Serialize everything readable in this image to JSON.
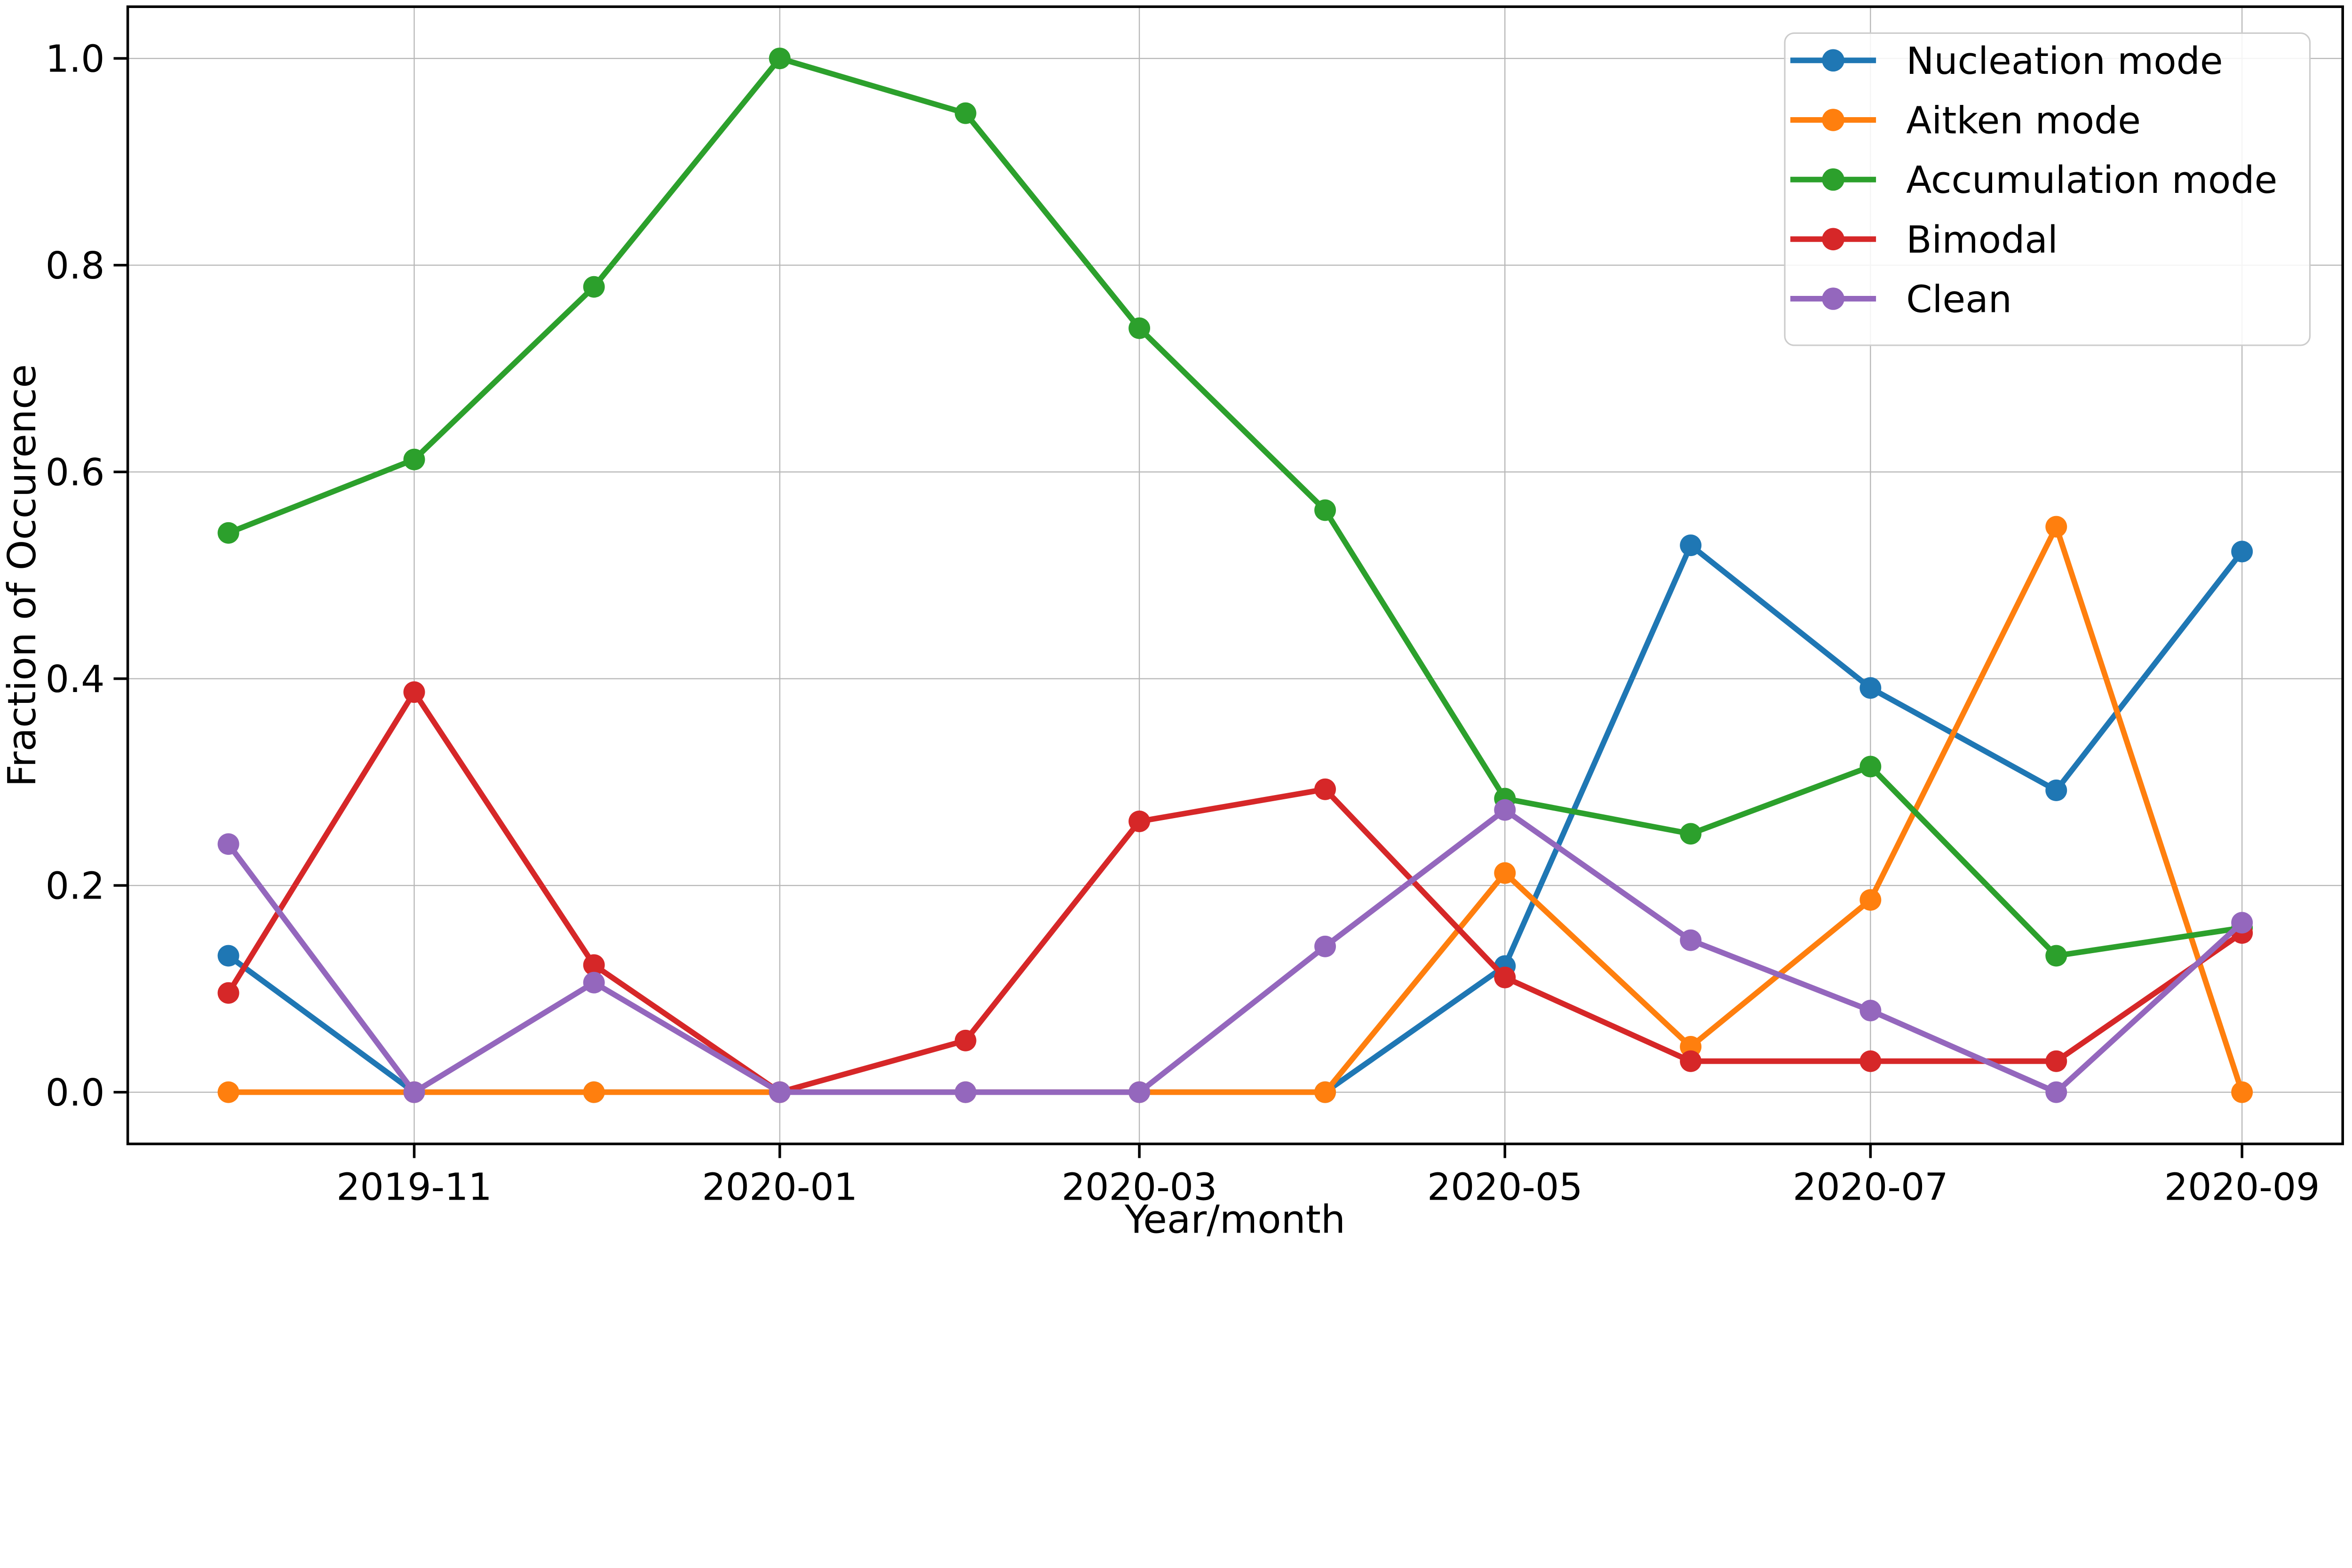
{
  "figure": {
    "background_color": "#ffffff",
    "grid_color": "#b8b8b8",
    "spine_color": "#000000"
  },
  "chart_data": {
    "type": "line",
    "title": "",
    "xlabel": "Year/month",
    "ylabel": "Fraction of Occurence",
    "grid": true,
    "legend_position": "upper right",
    "ylim": [
      -0.05,
      1.05
    ],
    "y_ticks": [
      0.0,
      0.2,
      0.4,
      0.6,
      0.8,
      1.0
    ],
    "y_tick_labels": [
      "0.0",
      "0.2",
      "0.4",
      "0.6",
      "0.8",
      "1.0"
    ],
    "categories": [
      "2019-10",
      "2019-11",
      "2019-12",
      "2020-01",
      "2020-02",
      "2020-03",
      "2020-04",
      "2020-05",
      "2020-06",
      "2020-07",
      "2020-08",
      "2020-09"
    ],
    "x_day_offsets": [
      0,
      31,
      61,
      92,
      123,
      152,
      183,
      213,
      244,
      274,
      305,
      336
    ],
    "x_tick_day_offsets": [
      31,
      92,
      152,
      213,
      274,
      336
    ],
    "x_tick_labels": [
      "2019-11",
      "2020-01",
      "2020-03",
      "2020-05",
      "2020-07",
      "2020-09"
    ],
    "series": [
      {
        "name": "Nucleation mode",
        "color": "#1f77b4",
        "values": [
          0.132,
          0.0,
          0.0,
          0.0,
          0.0,
          0.0,
          0.0,
          0.122,
          0.529,
          0.391,
          0.292,
          0.523
        ]
      },
      {
        "name": "Aitken mode",
        "color": "#ff7f0e",
        "values": [
          0.0,
          0.0,
          0.0,
          0.0,
          0.0,
          0.0,
          0.0,
          0.212,
          0.044,
          0.186,
          0.547,
          0.0
        ]
      },
      {
        "name": "Accumulation mode",
        "color": "#2ca02c",
        "values": [
          0.541,
          0.612,
          0.779,
          1.0,
          0.947,
          0.739,
          0.563,
          0.284,
          0.25,
          0.315,
          0.132,
          0.159
        ]
      },
      {
        "name": "Bimodal",
        "color": "#d62728",
        "values": [
          0.096,
          0.387,
          0.123,
          0.0,
          0.05,
          0.262,
          0.293,
          0.111,
          0.03,
          0.03,
          0.03,
          0.154
        ]
      },
      {
        "name": "Clean",
        "color": "#9467bd",
        "values": [
          0.24,
          0.0,
          0.106,
          0.0,
          0.0,
          0.0,
          0.141,
          0.273,
          0.147,
          0.079,
          0.0,
          0.164
        ]
      }
    ]
  }
}
